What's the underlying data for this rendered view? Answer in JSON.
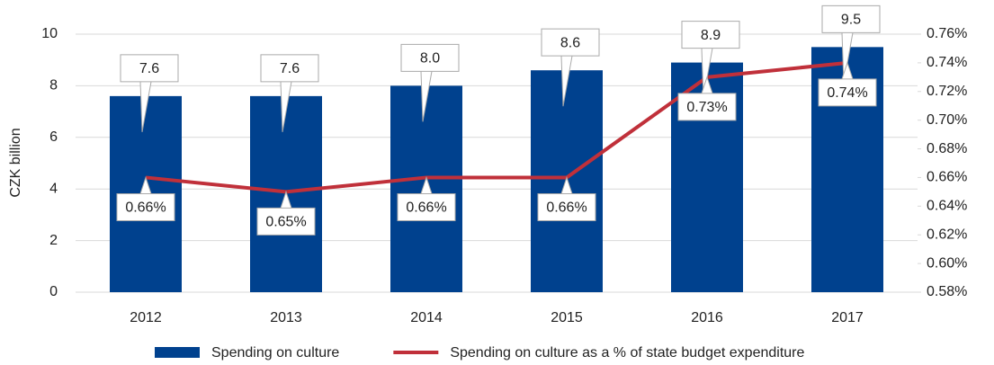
{
  "chart_data": {
    "type": "bar",
    "y_label": "CZK billion",
    "categories": [
      "2012",
      "2013",
      "2014",
      "2015",
      "2016",
      "2017"
    ],
    "series": [
      {
        "name": "Spending on culture",
        "type": "bar",
        "color": "#00418e",
        "values": [
          7.6,
          7.6,
          8,
          8.6,
          8.9,
          9.5
        ],
        "value_labels": [
          "7.6",
          "7.6",
          "8.0",
          "8.6",
          "8.9",
          "9.5"
        ]
      },
      {
        "name": "Spending on culture as a % of state budget expenditure",
        "type": "line",
        "axis": "y2",
        "color": "#c0303a",
        "values": [
          0.66,
          0.65,
          0.66,
          0.66,
          0.73,
          0.74
        ],
        "value_labels": [
          "0.66%",
          "0.65%",
          "0.66%",
          "0.66%",
          "0.73%",
          "0.74%"
        ]
      }
    ],
    "ylim": [
      0,
      10
    ],
    "yticks": [
      0,
      2,
      4,
      6,
      8,
      10
    ],
    "y2lim": [
      0.58,
      0.76
    ],
    "y2ticks": [
      {
        "value": 0.58,
        "label": "0.58%"
      },
      {
        "value": 0.6,
        "label": "0.60%"
      },
      {
        "value": 0.62,
        "label": "0.62%"
      },
      {
        "value": 0.64,
        "label": "0.64%"
      },
      {
        "value": 0.66,
        "label": "0.66%"
      },
      {
        "value": 0.68,
        "label": "0.68%"
      },
      {
        "value": 0.7,
        "label": "0.70%"
      },
      {
        "value": 0.72,
        "label": "0.72%"
      },
      {
        "value": 0.74,
        "label": "0.74%"
      },
      {
        "value": 0.76,
        "label": "0.76%"
      }
    ],
    "legend": "bottom"
  }
}
